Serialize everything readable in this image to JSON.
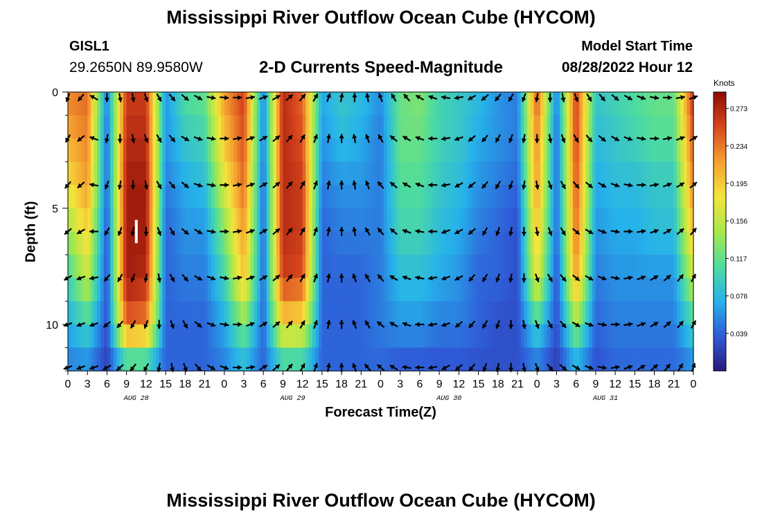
{
  "header": {
    "title": "Mississippi River Outflow Ocean Cube (HYCOM)",
    "station_id": "GISL1",
    "station_coords": "29.2650N  89.9580W",
    "subtitle": "2-D Currents Speed-Magnitude",
    "model_label": "Model Start Time",
    "model_time": "08/28/2022 Hour 12"
  },
  "footer": {
    "title": "Mississippi River Outflow Ocean Cube (HYCOM)"
  },
  "chart_data": {
    "type": "heatmap",
    "title": "2-D Currents Speed-Magnitude",
    "xlabel": "Forecast Time(Z)",
    "ylabel": "Depth (ft)",
    "x_range_hours": [
      0,
      96
    ],
    "ylim": [
      0,
      12
    ],
    "x_tick_labels": [
      "0",
      "3",
      "6",
      "9",
      "12",
      "15",
      "18",
      "21",
      "0",
      "3",
      "6",
      "9",
      "12",
      "15",
      "18",
      "21",
      "0",
      "3",
      "6",
      "9",
      "12",
      "15",
      "18",
      "21",
      "0",
      "3",
      "6",
      "9",
      "12",
      "15",
      "18",
      "21",
      "0"
    ],
    "date_labels": [
      {
        "label": "AUG 28",
        "hour": 10.5
      },
      {
        "label": "AUG 29",
        "hour": 34.5
      },
      {
        "label": "AUG 30",
        "hour": 58.5
      },
      {
        "label": "AUG 31",
        "hour": 82.5
      }
    ],
    "y_tick_labels": [
      "0",
      "5",
      "10"
    ],
    "y_ticks": [
      0,
      5,
      10
    ],
    "colorbar": {
      "unit": "Knots",
      "min": 0.0,
      "max": 0.29,
      "tick_values": [
        "0.273",
        "0.234",
        "0.195",
        "0.156",
        "0.117",
        "0.078",
        "0.039"
      ]
    },
    "speed_grid": {
      "depths_ft": [
        0,
        2,
        4,
        6,
        8,
        10,
        12
      ],
      "hours": [
        0,
        3,
        6,
        9,
        12,
        15,
        18,
        21,
        24,
        27,
        30,
        33,
        36,
        39,
        42,
        45,
        48,
        51,
        54,
        57,
        60,
        63,
        66,
        69,
        72,
        75,
        78,
        81,
        84,
        87,
        90,
        93,
        96
      ],
      "values_knots": [
        [
          0.23,
          0.24,
          0.05,
          0.26,
          0.26,
          0.06,
          0.11,
          0.12,
          0.22,
          0.26,
          0.05,
          0.27,
          0.24,
          0.07,
          0.09,
          0.08,
          0.06,
          0.12,
          0.13,
          0.1,
          0.09,
          0.08,
          0.06,
          0.05,
          0.25,
          0.05,
          0.26,
          0.09,
          0.1,
          0.11,
          0.12,
          0.12,
          0.27
        ],
        [
          0.21,
          0.23,
          0.04,
          0.27,
          0.27,
          0.06,
          0.09,
          0.1,
          0.2,
          0.25,
          0.05,
          0.27,
          0.25,
          0.06,
          0.08,
          0.07,
          0.05,
          0.12,
          0.12,
          0.1,
          0.09,
          0.07,
          0.06,
          0.05,
          0.23,
          0.04,
          0.26,
          0.08,
          0.09,
          0.1,
          0.11,
          0.11,
          0.25
        ],
        [
          0.18,
          0.22,
          0.04,
          0.28,
          0.28,
          0.05,
          0.07,
          0.08,
          0.17,
          0.24,
          0.04,
          0.27,
          0.26,
          0.05,
          0.06,
          0.06,
          0.05,
          0.11,
          0.11,
          0.09,
          0.08,
          0.06,
          0.05,
          0.04,
          0.22,
          0.04,
          0.25,
          0.07,
          0.08,
          0.08,
          0.09,
          0.09,
          0.23
        ],
        [
          0.14,
          0.19,
          0.03,
          0.28,
          0.28,
          0.04,
          0.06,
          0.06,
          0.13,
          0.22,
          0.04,
          0.27,
          0.26,
          0.04,
          0.05,
          0.05,
          0.05,
          0.1,
          0.1,
          0.08,
          0.07,
          0.05,
          0.04,
          0.03,
          0.2,
          0.04,
          0.24,
          0.06,
          0.07,
          0.07,
          0.08,
          0.08,
          0.2
        ],
        [
          0.1,
          0.16,
          0.03,
          0.28,
          0.27,
          0.04,
          0.05,
          0.05,
          0.1,
          0.2,
          0.04,
          0.26,
          0.25,
          0.04,
          0.04,
          0.04,
          0.05,
          0.08,
          0.08,
          0.07,
          0.06,
          0.04,
          0.04,
          0.03,
          0.18,
          0.03,
          0.22,
          0.05,
          0.06,
          0.06,
          0.06,
          0.06,
          0.16
        ],
        [
          0.07,
          0.1,
          0.03,
          0.24,
          0.23,
          0.04,
          0.04,
          0.04,
          0.07,
          0.13,
          0.04,
          0.19,
          0.18,
          0.04,
          0.04,
          0.04,
          0.05,
          0.06,
          0.06,
          0.05,
          0.05,
          0.04,
          0.03,
          0.03,
          0.1,
          0.03,
          0.14,
          0.04,
          0.05,
          0.05,
          0.05,
          0.05,
          0.1
        ],
        [
          0.05,
          0.05,
          0.02,
          0.07,
          0.07,
          0.04,
          0.04,
          0.04,
          0.05,
          0.07,
          0.04,
          0.08,
          0.08,
          0.04,
          0.04,
          0.04,
          0.04,
          0.03,
          0.03,
          0.03,
          0.03,
          0.03,
          0.03,
          0.03,
          0.04,
          0.02,
          0.06,
          0.03,
          0.04,
          0.04,
          0.04,
          0.04,
          0.05
        ]
      ]
    },
    "current_direction_grid": {
      "depths_ft": [
        0,
        2,
        4,
        6,
        8,
        10,
        12
      ],
      "hours": [
        0,
        2,
        4,
        6,
        8,
        10,
        12,
        14,
        16,
        18,
        20,
        22,
        24,
        26,
        28,
        30,
        32,
        34,
        36,
        38,
        40,
        42,
        44,
        46,
        48,
        50,
        52,
        54,
        56,
        58,
        60,
        62,
        64,
        66,
        68,
        70,
        72,
        74,
        76,
        78,
        80,
        82,
        84,
        86,
        88,
        90,
        92,
        94,
        96
      ],
      "direction_deg": [
        [
          200,
          220,
          300,
          180,
          170,
          170,
          160,
          150,
          140,
          130,
          120,
          100,
          95,
          90,
          80,
          70,
          60,
          50,
          40,
          30,
          20,
          10,
          0,
          350,
          340,
          330,
          320,
          300,
          290,
          280,
          260,
          240,
          230,
          220,
          210,
          200,
          190,
          180,
          170,
          160,
          150,
          140,
          130,
          120,
          110,
          100,
          90,
          80,
          70
        ],
        [
          210,
          230,
          290,
          190,
          180,
          170,
          160,
          150,
          140,
          120,
          110,
          100,
          90,
          80,
          70,
          60,
          50,
          40,
          30,
          20,
          10,
          0,
          350,
          340,
          330,
          310,
          300,
          290,
          270,
          260,
          250,
          230,
          220,
          210,
          200,
          190,
          180,
          170,
          160,
          150,
          140,
          130,
          120,
          110,
          100,
          90,
          80,
          70,
          60
        ],
        [
          220,
          230,
          280,
          200,
          190,
          180,
          170,
          150,
          140,
          130,
          110,
          100,
          90,
          80,
          70,
          60,
          50,
          40,
          30,
          20,
          10,
          0,
          350,
          340,
          320,
          310,
          300,
          290,
          270,
          260,
          240,
          230,
          220,
          210,
          200,
          190,
          170,
          160,
          150,
          140,
          130,
          120,
          110,
          100,
          90,
          80,
          70,
          60,
          50
        ],
        [
          230,
          240,
          270,
          210,
          200,
          190,
          180,
          160,
          150,
          130,
          120,
          100,
          90,
          80,
          70,
          60,
          50,
          40,
          30,
          20,
          10,
          0,
          350,
          330,
          320,
          310,
          290,
          280,
          270,
          250,
          240,
          230,
          210,
          200,
          190,
          180,
          170,
          160,
          150,
          130,
          120,
          110,
          100,
          90,
          80,
          70,
          60,
          50,
          40
        ],
        [
          240,
          250,
          260,
          220,
          210,
          200,
          190,
          170,
          150,
          140,
          120,
          110,
          100,
          80,
          70,
          60,
          50,
          40,
          30,
          20,
          10,
          0,
          340,
          330,
          320,
          300,
          290,
          280,
          260,
          250,
          240,
          220,
          210,
          200,
          190,
          180,
          160,
          150,
          140,
          130,
          120,
          110,
          100,
          80,
          70,
          60,
          50,
          40,
          30
        ],
        [
          250,
          250,
          250,
          230,
          220,
          210,
          200,
          180,
          160,
          150,
          130,
          110,
          100,
          90,
          70,
          60,
          50,
          40,
          30,
          20,
          10,
          0,
          340,
          330,
          310,
          300,
          290,
          270,
          260,
          250,
          230,
          220,
          210,
          200,
          180,
          170,
          160,
          150,
          140,
          120,
          110,
          100,
          90,
          80,
          70,
          60,
          50,
          40,
          30
        ],
        [
          250,
          250,
          250,
          240,
          230,
          220,
          210,
          190,
          170,
          160,
          140,
          120,
          110,
          90,
          80,
          60,
          50,
          40,
          30,
          20,
          10,
          0,
          340,
          320,
          310,
          300,
          280,
          270,
          260,
          240,
          230,
          220,
          200,
          190,
          180,
          170,
          160,
          140,
          130,
          120,
          110,
          100,
          80,
          70,
          60,
          50,
          40,
          30,
          20
        ]
      ]
    },
    "colors": {
      "colormap": [
        "#2a1a7a",
        "#2f5bd8",
        "#26b2ea",
        "#4fdc9e",
        "#a8e84a",
        "#f4e43c",
        "#f5a030",
        "#d8461e",
        "#8b0d06"
      ],
      "marker": "#ffffff",
      "arrow": "#000000"
    },
    "marker": {
      "hour": 10.5,
      "depth_from_ft": 5.5,
      "depth_to_ft": 6.5
    }
  }
}
